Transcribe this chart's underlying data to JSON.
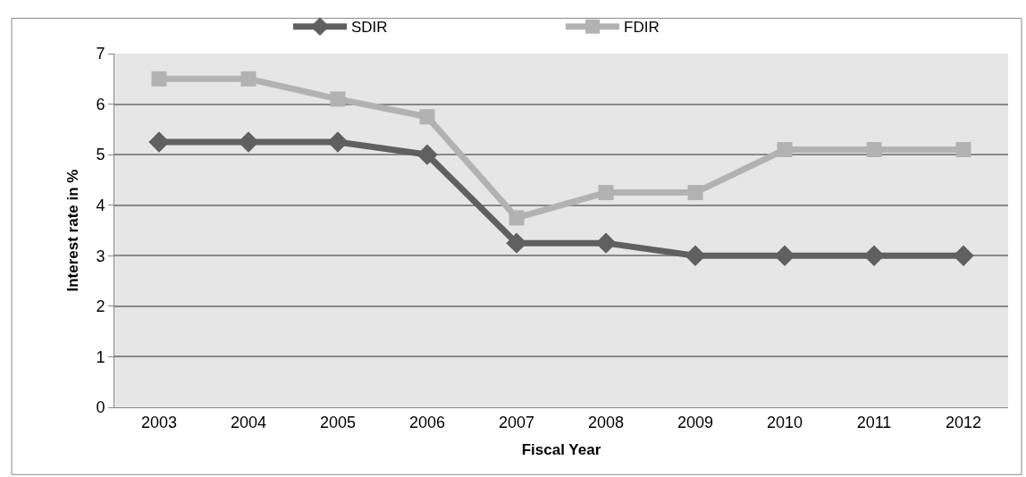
{
  "chart_data": {
    "type": "line",
    "xlabel": "Fiscal Year",
    "ylabel": "Interest rate in %",
    "categories": [
      "2003",
      "2004",
      "2005",
      "2006",
      "2007",
      "2008",
      "2009",
      "2010",
      "2011",
      "2012"
    ],
    "series": [
      {
        "name": "SDIR",
        "color": "#606060",
        "marker": "diamond",
        "values": [
          5.25,
          5.25,
          5.25,
          5.0,
          3.25,
          3.25,
          3.0,
          3.0,
          3.0,
          3.0
        ]
      },
      {
        "name": "FDIR",
        "color": "#b2b2b2",
        "marker": "square",
        "values": [
          6.5,
          6.5,
          6.1,
          5.75,
          3.75,
          4.25,
          4.25,
          5.1,
          5.1,
          5.1
        ]
      }
    ],
    "ylim": [
      0,
      7
    ],
    "yticks": [
      0,
      1,
      2,
      3,
      4,
      5,
      6,
      7
    ],
    "grid": "y",
    "legend": "top",
    "line_style": "solid"
  }
}
